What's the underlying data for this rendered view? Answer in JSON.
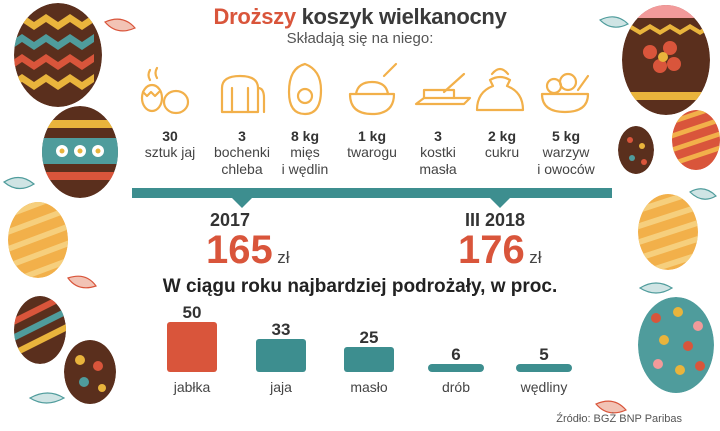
{
  "header": {
    "title_accent": "Droższy",
    "title_rest": " koszyk wielkanocny",
    "subtitle": "Składają się na niego:"
  },
  "basket": [
    {
      "icon": "eggs-icon",
      "qty": "30",
      "desc1": "sztuk jaj",
      "desc2": ""
    },
    {
      "icon": "bread-icon",
      "qty": "3",
      "desc1": "bochenki",
      "desc2": "chleba"
    },
    {
      "icon": "meat-icon",
      "qty": "8 kg",
      "desc1": "mięs",
      "desc2": "i wędlin"
    },
    {
      "icon": "cheese-bowl-icon",
      "qty": "1 kg",
      "desc1": "twarogu",
      "desc2": ""
    },
    {
      "icon": "butter-icon",
      "qty": "3",
      "desc1": "kostki",
      "desc2": "masła"
    },
    {
      "icon": "sugar-sack-icon",
      "qty": "2 kg",
      "desc1": "cukru",
      "desc2": ""
    },
    {
      "icon": "vegetable-bowl-icon",
      "qty": "5 kg",
      "desc1": "warzyw",
      "desc2": "i owoców"
    }
  ],
  "prices": {
    "left": {
      "label": "2017",
      "value": "165",
      "currency": "zł"
    },
    "right": {
      "label": "III 2018",
      "value": "176",
      "currency": "zł"
    }
  },
  "chart_data": {
    "type": "bar",
    "title": "W ciągu roku najbardziej podrożały, w proc.",
    "categories": [
      "jabłka",
      "jaja",
      "masło",
      "drób",
      "wędliny"
    ],
    "values": [
      50,
      33,
      25,
      6,
      5
    ],
    "colors": [
      "#d9553b",
      "#3d8e8f",
      "#3d8e8f",
      "#3d8e8f",
      "#3d8e8f"
    ]
  },
  "source": "Źródło: BGŻ BNP Paribas",
  "colors": {
    "accent": "#d9553b",
    "teal": "#3d8e8f",
    "icon": "#f2b04a"
  }
}
